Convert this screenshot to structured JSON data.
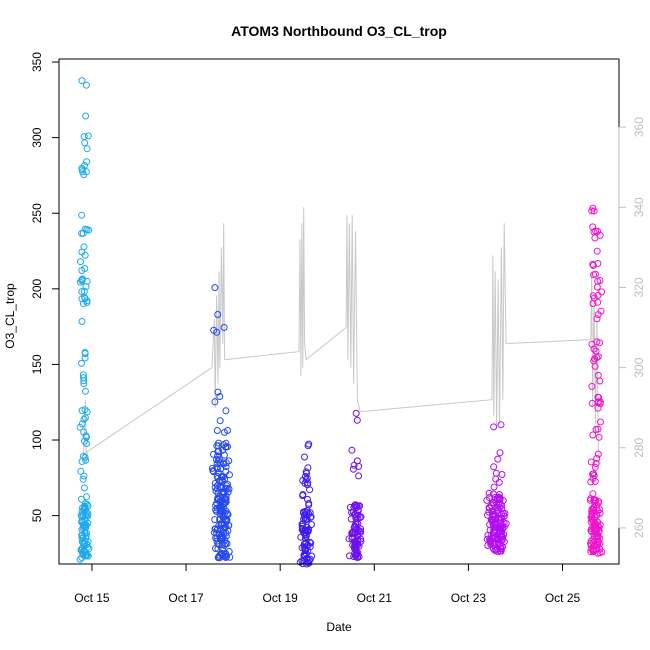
{
  "chart_data": {
    "type": "scatter",
    "title": "ATOM3 Northbound O3_CL_trop",
    "xlabel": "Date",
    "ylabel": "O3_CL_trop",
    "x_ticks": [
      {
        "day": 15,
        "label": "Oct 15"
      },
      {
        "day": 17,
        "label": "Oct 17"
      },
      {
        "day": 19,
        "label": "Oct 19"
      },
      {
        "day": 21,
        "label": "Oct 21"
      },
      {
        "day": 23,
        "label": "Oct 23"
      },
      {
        "day": 25,
        "label": "Oct 25"
      }
    ],
    "xlim": [
      14.3,
      26.2
    ],
    "ylim": [
      18,
      352
    ],
    "y_ticks": [
      50,
      100,
      150,
      200,
      250,
      300,
      350
    ],
    "right_axis": {
      "ylim": [
        251,
        377
      ],
      "ticks": [
        260,
        280,
        300,
        320,
        340,
        360
      ],
      "color": "#bebebe"
    },
    "series": [
      {
        "color": "#1ea9ee",
        "x_center": 14.84,
        "x_halfwidth": 0.11,
        "y_clusters": [
          {
            "lo": 21,
            "hi": 58,
            "n": 70
          },
          {
            "lo": 60,
            "hi": 180,
            "n": 32
          },
          {
            "lo": 190,
            "hi": 252,
            "n": 26
          },
          {
            "lo": 275,
            "hi": 341,
            "n": 14
          }
        ]
      },
      {
        "color": "#2549ec",
        "x_center": 17.75,
        "x_halfwidth": 0.2,
        "y_clusters": [
          {
            "lo": 21,
            "hi": 65,
            "n": 110
          },
          {
            "lo": 65,
            "hi": 98,
            "n": 60
          },
          {
            "lo": 100,
            "hi": 135,
            "n": 8
          },
          {
            "lo": 160,
            "hi": 207,
            "n": 5
          }
        ]
      },
      {
        "color": "#3f1aee",
        "x_center": 19.55,
        "x_halfwidth": 0.13,
        "y_clusters": [
          {
            "lo": 18,
            "hi": 55,
            "n": 70
          },
          {
            "lo": 55,
            "hi": 85,
            "n": 16
          },
          {
            "lo": 86,
            "hi": 101,
            "n": 3
          }
        ]
      },
      {
        "color": "#6d10ef",
        "x_center": 20.6,
        "x_halfwidth": 0.14,
        "y_clusters": [
          {
            "lo": 22,
            "hi": 58,
            "n": 80
          },
          {
            "lo": 58,
            "hi": 95,
            "n": 6
          },
          {
            "lo": 110,
            "hi": 120,
            "n": 2
          }
        ]
      },
      {
        "color": "#b20ff0",
        "x_center": 23.6,
        "x_halfwidth": 0.22,
        "y_clusters": [
          {
            "lo": 26,
            "hi": 65,
            "n": 130
          },
          {
            "lo": 65,
            "hi": 95,
            "n": 8
          },
          {
            "lo": 106,
            "hi": 116,
            "n": 2
          }
        ]
      },
      {
        "color": "#ee14cc",
        "x_center": 25.7,
        "x_halfwidth": 0.14,
        "y_clusters": [
          {
            "lo": 25,
            "hi": 62,
            "n": 90
          },
          {
            "lo": 62,
            "hi": 130,
            "n": 25
          },
          {
            "lo": 130,
            "hi": 200,
            "n": 22
          },
          {
            "lo": 200,
            "hi": 254,
            "n": 18
          }
        ]
      }
    ],
    "line_series": {
      "color": "#c8c8c8",
      "axis": "right",
      "points": [
        [
          14.82,
          278
        ],
        [
          14.84,
          285
        ],
        [
          14.86,
          292
        ],
        [
          14.88,
          276
        ],
        [
          14.9,
          279
        ],
        [
          17.55,
          300
        ],
        [
          17.6,
          312
        ],
        [
          17.62,
          290
        ],
        [
          17.65,
          318
        ],
        [
          17.68,
          296
        ],
        [
          17.7,
          324
        ],
        [
          17.72,
          300
        ],
        [
          17.75,
          330
        ],
        [
          17.78,
          306
        ],
        [
          17.8,
          336
        ],
        [
          17.82,
          302
        ],
        [
          17.84,
          302
        ],
        [
          19.4,
          304
        ],
        [
          19.42,
          332
        ],
        [
          19.44,
          298
        ],
        [
          19.46,
          336
        ],
        [
          19.48,
          300
        ],
        [
          19.5,
          340
        ],
        [
          19.52,
          306
        ],
        [
          19.55,
          302
        ],
        [
          20.4,
          310
        ],
        [
          20.42,
          338
        ],
        [
          20.44,
          302
        ],
        [
          20.47,
          336
        ],
        [
          20.5,
          300
        ],
        [
          20.53,
          338
        ],
        [
          20.56,
          296
        ],
        [
          20.6,
          334
        ],
        [
          20.64,
          292
        ],
        [
          20.68,
          290
        ],
        [
          20.7,
          289
        ],
        [
          23.5,
          292
        ],
        [
          23.52,
          328
        ],
        [
          23.54,
          288
        ],
        [
          23.57,
          324
        ],
        [
          23.6,
          285
        ],
        [
          23.63,
          322
        ],
        [
          23.66,
          286
        ],
        [
          23.7,
          330
        ],
        [
          23.73,
          292
        ],
        [
          23.76,
          336
        ],
        [
          23.8,
          306
        ],
        [
          25.6,
          307
        ],
        [
          25.62,
          324
        ],
        [
          25.64,
          290
        ],
        [
          25.67,
          318
        ],
        [
          25.7,
          286
        ],
        [
          25.73,
          312
        ],
        [
          25.76,
          280
        ],
        [
          25.8,
          276
        ]
      ]
    }
  }
}
